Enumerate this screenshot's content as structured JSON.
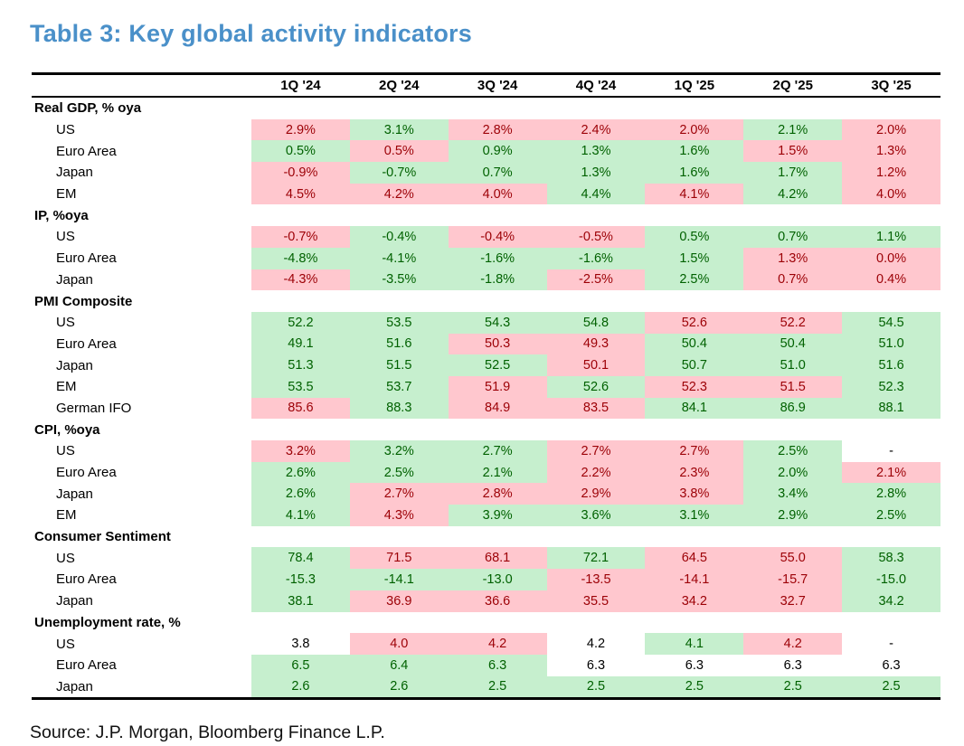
{
  "title": "Table 3: Key global activity indicators",
  "source": "Source: J.P. Morgan, Bloomberg Finance L.P.",
  "colors": {
    "title_blue": "#4a90c9",
    "good_bg": "#c6efce",
    "good_text": "#006100",
    "bad_bg": "#ffc7ce",
    "bad_text": "#9c0006"
  },
  "chart_data": {
    "type": "table",
    "title": "Table 3: Key global activity indicators",
    "columns": [
      "1Q '24",
      "2Q '24",
      "3Q '24",
      "4Q '24",
      "1Q '25",
      "2Q '25",
      "3Q '25"
    ],
    "cell_tone_legend": {
      "good": "green shaded cell",
      "bad": "pink shaded cell",
      "none": "unshaded cell"
    },
    "sections": [
      {
        "label": "Real GDP, % oya",
        "rows": [
          {
            "label": "US",
            "values": [
              "2.9%",
              "3.1%",
              "2.8%",
              "2.4%",
              "2.0%",
              "2.1%",
              "2.0%"
            ],
            "tones": [
              "bad",
              "good",
              "bad",
              "bad",
              "bad",
              "good",
              "bad"
            ]
          },
          {
            "label": "Euro Area",
            "values": [
              "0.5%",
              "0.5%",
              "0.9%",
              "1.3%",
              "1.6%",
              "1.5%",
              "1.3%"
            ],
            "tones": [
              "good",
              "bad",
              "good",
              "good",
              "good",
              "bad",
              "bad"
            ]
          },
          {
            "label": "Japan",
            "values": [
              "-0.9%",
              "-0.7%",
              "0.7%",
              "1.3%",
              "1.6%",
              "1.7%",
              "1.2%"
            ],
            "tones": [
              "bad",
              "good",
              "good",
              "good",
              "good",
              "good",
              "bad"
            ]
          },
          {
            "label": "EM",
            "values": [
              "4.5%",
              "4.2%",
              "4.0%",
              "4.4%",
              "4.1%",
              "4.2%",
              "4.0%"
            ],
            "tones": [
              "bad",
              "bad",
              "bad",
              "good",
              "bad",
              "good",
              "bad"
            ]
          }
        ]
      },
      {
        "label": "IP, %oya",
        "rows": [
          {
            "label": "US",
            "values": [
              "-0.7%",
              "-0.4%",
              "-0.4%",
              "-0.5%",
              "0.5%",
              "0.7%",
              "1.1%"
            ],
            "tones": [
              "bad",
              "good",
              "bad",
              "bad",
              "good",
              "good",
              "good"
            ]
          },
          {
            "label": "Euro Area",
            "values": [
              "-4.8%",
              "-4.1%",
              "-1.6%",
              "-1.6%",
              "1.5%",
              "1.3%",
              "0.0%"
            ],
            "tones": [
              "good",
              "good",
              "good",
              "good",
              "good",
              "bad",
              "bad"
            ]
          },
          {
            "label": "Japan",
            "values": [
              "-4.3%",
              "-3.5%",
              "-1.8%",
              "-2.5%",
              "2.5%",
              "0.7%",
              "0.4%"
            ],
            "tones": [
              "bad",
              "good",
              "good",
              "bad",
              "good",
              "bad",
              "bad"
            ]
          }
        ]
      },
      {
        "label": "PMI Composite",
        "rows": [
          {
            "label": "US",
            "values": [
              "52.2",
              "53.5",
              "54.3",
              "54.8",
              "52.6",
              "52.2",
              "54.5"
            ],
            "tones": [
              "good",
              "good",
              "good",
              "good",
              "bad",
              "bad",
              "good"
            ]
          },
          {
            "label": "Euro Area",
            "values": [
              "49.1",
              "51.6",
              "50.3",
              "49.3",
              "50.4",
              "50.4",
              "51.0"
            ],
            "tones": [
              "good",
              "good",
              "bad",
              "bad",
              "good",
              "good",
              "good"
            ]
          },
          {
            "label": "Japan",
            "values": [
              "51.3",
              "51.5",
              "52.5",
              "50.1",
              "50.7",
              "51.0",
              "51.6"
            ],
            "tones": [
              "good",
              "good",
              "good",
              "bad",
              "good",
              "good",
              "good"
            ]
          },
          {
            "label": "EM",
            "values": [
              "53.5",
              "53.7",
              "51.9",
              "52.6",
              "52.3",
              "51.5",
              "52.3"
            ],
            "tones": [
              "good",
              "good",
              "bad",
              "good",
              "bad",
              "bad",
              "good"
            ]
          },
          {
            "label": "German IFO",
            "values": [
              "85.6",
              "88.3",
              "84.9",
              "83.5",
              "84.1",
              "86.9",
              "88.1"
            ],
            "tones": [
              "bad",
              "good",
              "bad",
              "bad",
              "good",
              "good",
              "good"
            ]
          }
        ]
      },
      {
        "label": "CPI, %oya",
        "rows": [
          {
            "label": "US",
            "values": [
              "3.2%",
              "3.2%",
              "2.7%",
              "2.7%",
              "2.7%",
              "2.5%",
              "-"
            ],
            "tones": [
              "bad",
              "good",
              "good",
              "bad",
              "bad",
              "good",
              "none"
            ]
          },
          {
            "label": "Euro Area",
            "values": [
              "2.6%",
              "2.5%",
              "2.1%",
              "2.2%",
              "2.3%",
              "2.0%",
              "2.1%"
            ],
            "tones": [
              "good",
              "good",
              "good",
              "bad",
              "bad",
              "good",
              "bad"
            ]
          },
          {
            "label": "Japan",
            "values": [
              "2.6%",
              "2.7%",
              "2.8%",
              "2.9%",
              "3.8%",
              "3.4%",
              "2.8%"
            ],
            "tones": [
              "good",
              "bad",
              "bad",
              "bad",
              "bad",
              "good",
              "good"
            ]
          },
          {
            "label": "EM",
            "values": [
              "4.1%",
              "4.3%",
              "3.9%",
              "3.6%",
              "3.1%",
              "2.9%",
              "2.5%"
            ],
            "tones": [
              "good",
              "bad",
              "good",
              "good",
              "good",
              "good",
              "good"
            ]
          }
        ]
      },
      {
        "label": "Consumer Sentiment",
        "rows": [
          {
            "label": "US",
            "values": [
              "78.4",
              "71.5",
              "68.1",
              "72.1",
              "64.5",
              "55.0",
              "58.3"
            ],
            "tones": [
              "good",
              "bad",
              "bad",
              "good",
              "bad",
              "bad",
              "good"
            ]
          },
          {
            "label": "Euro Area",
            "values": [
              "-15.3",
              "-14.1",
              "-13.0",
              "-13.5",
              "-14.1",
              "-15.7",
              "-15.0"
            ],
            "tones": [
              "good",
              "good",
              "good",
              "bad",
              "bad",
              "bad",
              "good"
            ]
          },
          {
            "label": "Japan",
            "values": [
              "38.1",
              "36.9",
              "36.6",
              "35.5",
              "34.2",
              "32.7",
              "34.2"
            ],
            "tones": [
              "good",
              "bad",
              "bad",
              "bad",
              "bad",
              "bad",
              "good"
            ]
          }
        ]
      },
      {
        "label": "Unemployment rate, %",
        "rows": [
          {
            "label": "US",
            "values": [
              "3.8",
              "4.0",
              "4.2",
              "4.2",
              "4.1",
              "4.2",
              "-"
            ],
            "tones": [
              "none",
              "bad",
              "bad",
              "none",
              "good",
              "bad",
              "none"
            ]
          },
          {
            "label": "Euro Area",
            "values": [
              "6.5",
              "6.4",
              "6.3",
              "6.3",
              "6.3",
              "6.3",
              "6.3"
            ],
            "tones": [
              "good",
              "good",
              "good",
              "none",
              "none",
              "none",
              "none"
            ]
          },
          {
            "label": "Japan",
            "values": [
              "2.6",
              "2.6",
              "2.5",
              "2.5",
              "2.5",
              "2.5",
              "2.5"
            ],
            "tones": [
              "good",
              "good",
              "good",
              "good",
              "good",
              "good",
              "good"
            ]
          }
        ]
      }
    ]
  }
}
